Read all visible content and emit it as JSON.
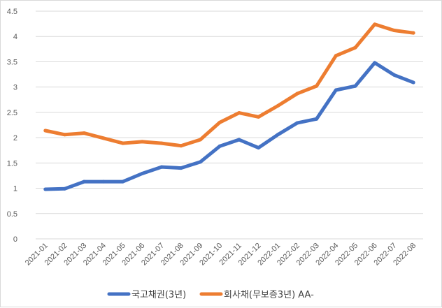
{
  "chart_data": {
    "type": "line",
    "title": "",
    "xlabel": "",
    "ylabel": "",
    "ylim": [
      0,
      4.5
    ],
    "yticks": [
      "0",
      "0.5",
      "1",
      "1.5",
      "2",
      "2.5",
      "3",
      "3.5",
      "4",
      "4.5"
    ],
    "grid": true,
    "legend_position": "bottom",
    "categories": [
      "2021-01",
      "2021-02",
      "2021-03",
      "2021-04",
      "2021-05",
      "2021-06",
      "2021-07",
      "2021-08",
      "2021-09",
      "2021-10",
      "2021-11",
      "2021-12",
      "2022-01",
      "2022-02",
      "2022-03",
      "2022-04",
      "2022-05",
      "2022-06",
      "2022-07",
      "2022-08"
    ],
    "series": [
      {
        "name": "국고채권(3년)",
        "color": "#4472C4",
        "values": [
          0.98,
          0.99,
          1.13,
          1.13,
          1.13,
          1.29,
          1.42,
          1.4,
          1.52,
          1.83,
          1.96,
          1.8,
          2.06,
          2.29,
          2.37,
          2.94,
          3.02,
          3.48,
          3.24,
          3.09
        ]
      },
      {
        "name": "회사채(무보증3년) AA-",
        "color": "#ED7D31",
        "values": [
          2.14,
          2.06,
          2.09,
          1.99,
          1.89,
          1.92,
          1.89,
          1.84,
          1.96,
          2.3,
          2.49,
          2.41,
          2.63,
          2.87,
          3.02,
          3.62,
          3.78,
          4.24,
          4.12,
          4.07
        ]
      }
    ]
  }
}
